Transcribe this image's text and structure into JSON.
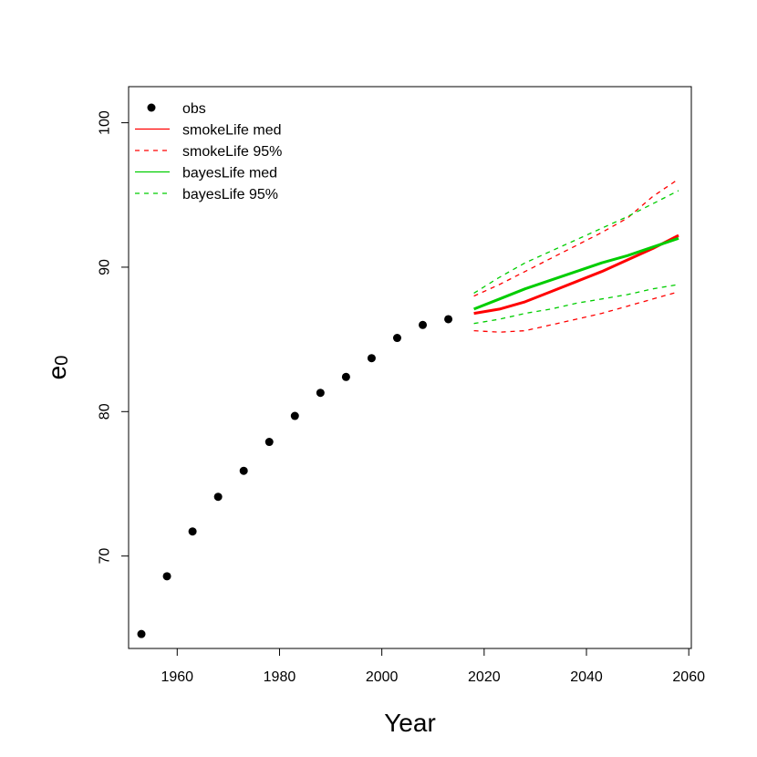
{
  "chart_data": {
    "type": "line",
    "xlabel": "Year",
    "ylabel": "e",
    "ylabel_subscript": "0",
    "xlim": [
      1950.5,
      2060.5
    ],
    "ylim": [
      63.6,
      102.5
    ],
    "xticks": [
      1960,
      1980,
      2000,
      2020,
      2040,
      2060
    ],
    "yticks": [
      70,
      80,
      90,
      100
    ],
    "grid": false,
    "legend_position": "top-left",
    "series": [
      {
        "name": "obs",
        "style": "points",
        "color": "#000000",
        "x": [
          1953,
          1958,
          1963,
          1968,
          1973,
          1978,
          1983,
          1988,
          1993,
          1998,
          2003,
          2008,
          2013
        ],
        "y": [
          64.6,
          68.6,
          71.7,
          74.1,
          75.9,
          77.9,
          79.7,
          81.3,
          82.4,
          83.7,
          85.1,
          86.0,
          86.4
        ]
      },
      {
        "name": "smokeLife med",
        "style": "solid",
        "color": "#ff0000",
        "x": [
          2018,
          2023,
          2028,
          2033,
          2038,
          2043,
          2048,
          2053,
          2058
        ],
        "y": [
          86.8,
          87.1,
          87.6,
          88.3,
          89.0,
          89.7,
          90.5,
          91.3,
          92.2
        ]
      },
      {
        "name": "smokeLife 95%",
        "style": "dashed",
        "color": "#ff0000",
        "band": [
          {
            "x": [
              2018,
              2023,
              2028,
              2033,
              2038,
              2043,
              2048,
              2053,
              2058
            ],
            "y": [
              85.6,
              85.5,
              85.6,
              86.0,
              86.4,
              86.8,
              87.3,
              87.8,
              88.3
            ]
          },
          {
            "x": [
              2018,
              2023,
              2028,
              2033,
              2038,
              2043,
              2048,
              2053,
              2058
            ],
            "y": [
              88.0,
              88.8,
              89.7,
              90.6,
              91.5,
              92.4,
              93.4,
              94.9,
              96.1
            ]
          }
        ]
      },
      {
        "name": "bayesLife med",
        "style": "solid",
        "color": "#00cd00",
        "x": [
          2018,
          2023,
          2028,
          2033,
          2038,
          2043,
          2048,
          2053,
          2058
        ],
        "y": [
          87.1,
          87.8,
          88.5,
          89.1,
          89.7,
          90.3,
          90.8,
          91.4,
          92.0
        ]
      },
      {
        "name": "bayesLife 95%",
        "style": "dashed",
        "color": "#00cd00",
        "band": [
          {
            "x": [
              2018,
              2023,
              2028,
              2033,
              2038,
              2043,
              2048,
              2053,
              2058
            ],
            "y": [
              86.1,
              86.4,
              86.8,
              87.1,
              87.5,
              87.8,
              88.1,
              88.5,
              88.8
            ]
          },
          {
            "x": [
              2018,
              2023,
              2028,
              2033,
              2038,
              2043,
              2048,
              2053,
              2058
            ],
            "y": [
              88.2,
              89.3,
              90.3,
              91.1,
              91.9,
              92.7,
              93.5,
              94.4,
              95.3
            ]
          }
        ]
      }
    ]
  }
}
